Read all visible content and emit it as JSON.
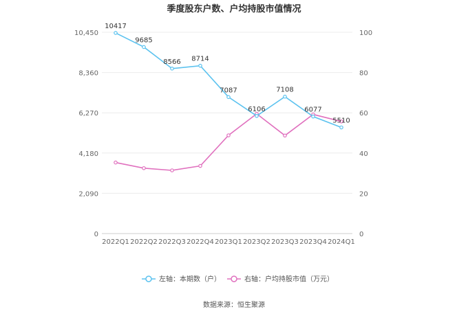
{
  "chart_data": {
    "type": "line",
    "title": "季度股东户数、户均持股市值情况",
    "categories": [
      "2022Q1",
      "2022Q2",
      "2022Q3",
      "2022Q4",
      "2023Q1",
      "2023Q2",
      "2023Q3",
      "2023Q4",
      "2024Q1"
    ],
    "series": [
      {
        "name": "左轴：本期数（户）",
        "axis": "left",
        "color": "#5bc2ef",
        "values": [
          10417,
          9685,
          8566,
          8714,
          7087,
          6106,
          7108,
          6077,
          5510
        ],
        "labels": [
          "10417",
          "9685",
          "8566",
          "8714",
          "7087",
          "6106",
          "7108",
          "6077",
          "5510"
        ]
      },
      {
        "name": "右轴：户均持股市值（万元）",
        "axis": "right",
        "color": "#e070be",
        "values": [
          35.3,
          32.5,
          31.4,
          33.6,
          48.8,
          59.5,
          48.7,
          59.2,
          55.7
        ]
      }
    ],
    "left_axis": {
      "ticks": [
        "0",
        "2,090",
        "4,180",
        "6,270",
        "8,360",
        "10,450"
      ],
      "tick_values": [
        0,
        2090,
        4180,
        6270,
        8360,
        10450
      ],
      "ylim": [
        0,
        10450
      ]
    },
    "right_axis": {
      "ticks": [
        "0",
        "20",
        "40",
        "60",
        "80",
        "100"
      ],
      "tick_values": [
        0,
        20,
        40,
        60,
        80,
        100
      ],
      "ylim": [
        0,
        100
      ]
    },
    "grid": true,
    "legend_position": "bottom"
  },
  "source": "数据来源：恒生聚源"
}
